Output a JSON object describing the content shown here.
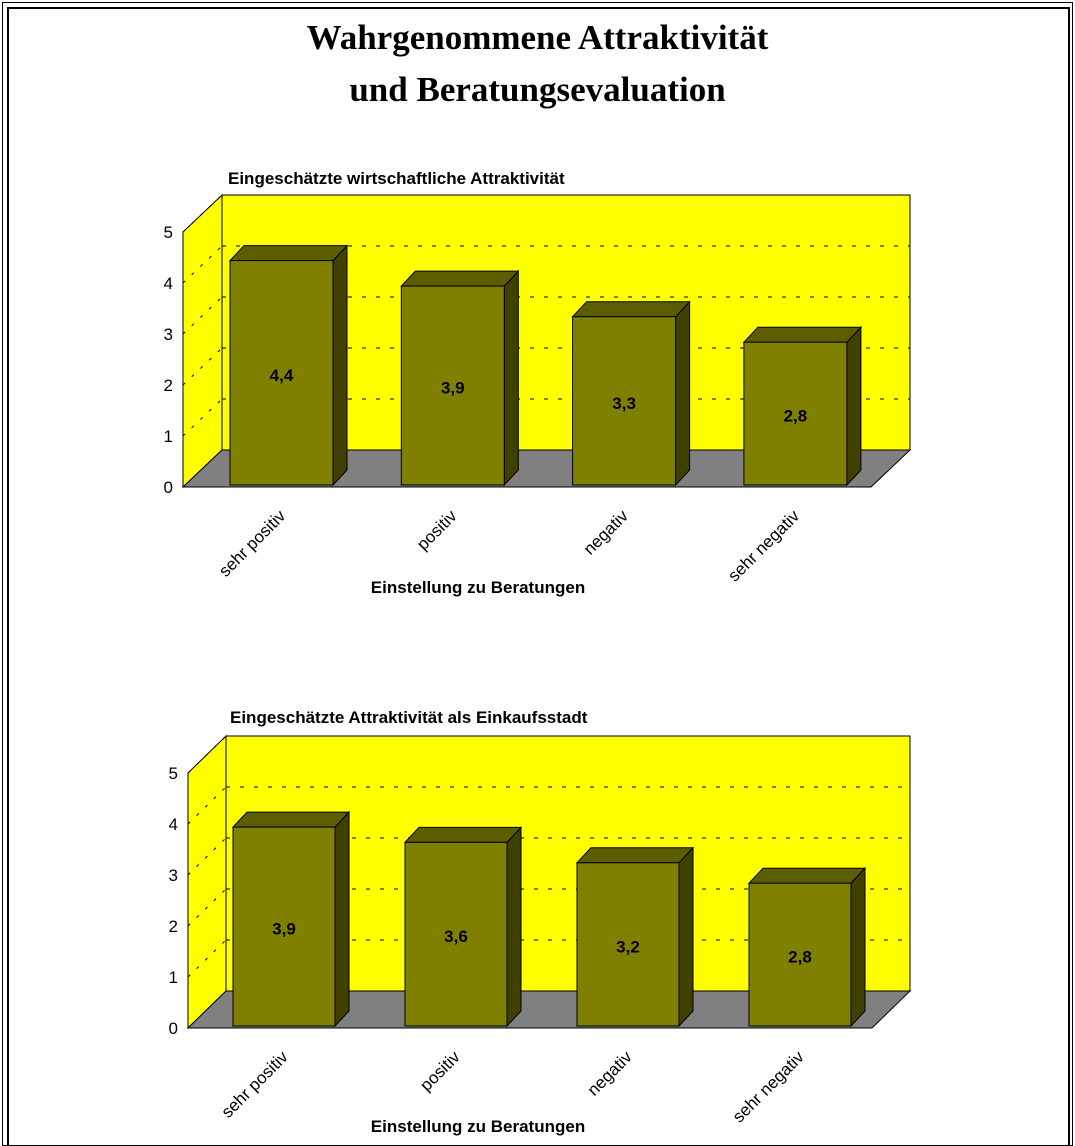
{
  "page": {
    "title_line1": "Wahrgenommene Attraktivität",
    "title_line2": "und Beratungsevaluation"
  },
  "colors": {
    "wall": "#ffff00",
    "floor": "#808080",
    "bar_front": "#808000",
    "bar_top": "#5c5c00",
    "bar_side": "#404000"
  },
  "chart_data": [
    {
      "type": "bar",
      "title": "Eingeschätzte wirtschaftliche Attraktivität",
      "xlabel": "Einstellung zu Beratungen",
      "ylabel": "",
      "categories": [
        "sehr positiv",
        "positiv",
        "negativ",
        "sehr negativ"
      ],
      "values": [
        4.4,
        3.9,
        3.3,
        2.8
      ],
      "value_labels": [
        "4,4",
        "3,9",
        "3,3",
        "2,8"
      ],
      "ylim": [
        0,
        5
      ],
      "yticks": [
        0,
        1,
        2,
        3,
        4,
        5
      ],
      "grid": "dashed"
    },
    {
      "type": "bar",
      "title": "Eingeschätzte Attraktivität als Einkaufsstadt",
      "xlabel": "Einstellung zu Beratungen",
      "ylabel": "",
      "categories": [
        "sehr positiv",
        "positiv",
        "negativ",
        "sehr negativ"
      ],
      "values": [
        3.9,
        3.6,
        3.2,
        2.8
      ],
      "value_labels": [
        "3,9",
        "3,6",
        "3,2",
        "2,8"
      ],
      "ylim": [
        0,
        5
      ],
      "yticks": [
        0,
        1,
        2,
        3,
        4,
        5
      ],
      "grid": "dashed"
    }
  ]
}
